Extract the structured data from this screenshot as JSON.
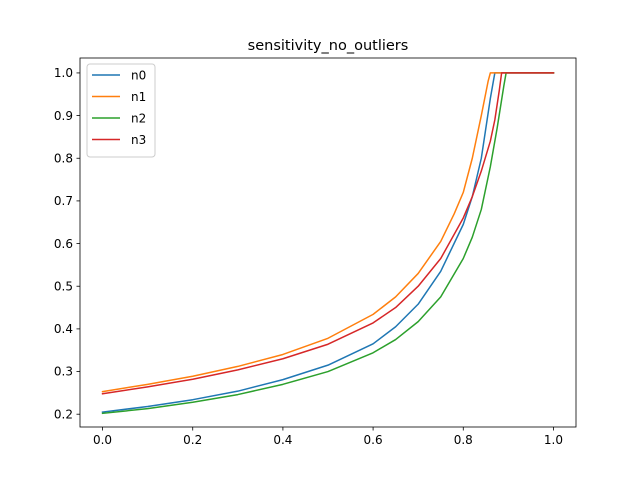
{
  "chart_data": {
    "type": "line",
    "title": "sensitivity_no_outliers",
    "xlabel": "",
    "ylabel": "",
    "xlim": [
      -0.05,
      1.05
    ],
    "ylim": [
      0.17,
      1.035
    ],
    "xticks": [
      0.0,
      0.2,
      0.4,
      0.6,
      0.8,
      1.0
    ],
    "xtick_labels": [
      "0.0",
      "0.2",
      "0.4",
      "0.6",
      "0.8",
      "1.0"
    ],
    "yticks": [
      0.2,
      0.3,
      0.4,
      0.5,
      0.6,
      0.7,
      0.8,
      0.9,
      1.0
    ],
    "ytick_labels": [
      "0.2",
      "0.3",
      "0.4",
      "0.5",
      "0.6",
      "0.7",
      "0.8",
      "0.9",
      "1.0"
    ],
    "grid": false,
    "legend_position": "top-left",
    "series": [
      {
        "name": "n0",
        "color": "#1f77b4",
        "x": [
          0.0,
          0.1,
          0.2,
          0.3,
          0.4,
          0.5,
          0.6,
          0.65,
          0.7,
          0.75,
          0.8,
          0.82,
          0.84,
          0.86,
          0.87,
          0.9,
          1.0
        ],
        "y": [
          0.205,
          0.218,
          0.234,
          0.254,
          0.281,
          0.315,
          0.365,
          0.405,
          0.458,
          0.535,
          0.645,
          0.71,
          0.8,
          0.94,
          1.0,
          1.0,
          1.0
        ]
      },
      {
        "name": "n1",
        "color": "#ff7f0e",
        "x": [
          0.0,
          0.1,
          0.2,
          0.3,
          0.4,
          0.5,
          0.6,
          0.65,
          0.7,
          0.75,
          0.78,
          0.8,
          0.82,
          0.84,
          0.855,
          0.86,
          0.9,
          1.0
        ],
        "y": [
          0.253,
          0.27,
          0.289,
          0.312,
          0.34,
          0.378,
          0.434,
          0.475,
          0.53,
          0.605,
          0.67,
          0.72,
          0.8,
          0.9,
          0.98,
          1.0,
          1.0,
          1.0
        ]
      },
      {
        "name": "n2",
        "color": "#2ca02c",
        "x": [
          0.0,
          0.1,
          0.2,
          0.3,
          0.4,
          0.5,
          0.6,
          0.65,
          0.7,
          0.75,
          0.8,
          0.82,
          0.84,
          0.86,
          0.875,
          0.89,
          0.895,
          1.0
        ],
        "y": [
          0.202,
          0.213,
          0.228,
          0.246,
          0.27,
          0.3,
          0.344,
          0.375,
          0.417,
          0.475,
          0.565,
          0.615,
          0.68,
          0.78,
          0.87,
          0.97,
          1.0,
          1.0
        ]
      },
      {
        "name": "n3",
        "color": "#d62728",
        "x": [
          0.0,
          0.1,
          0.2,
          0.3,
          0.4,
          0.5,
          0.6,
          0.65,
          0.7,
          0.75,
          0.8,
          0.82,
          0.84,
          0.86,
          0.87,
          0.88,
          0.885,
          0.9,
          1.0
        ],
        "y": [
          0.248,
          0.264,
          0.282,
          0.304,
          0.33,
          0.364,
          0.414,
          0.45,
          0.5,
          0.565,
          0.66,
          0.71,
          0.77,
          0.84,
          0.89,
          0.96,
          1.0,
          1.0,
          1.0
        ]
      }
    ]
  }
}
